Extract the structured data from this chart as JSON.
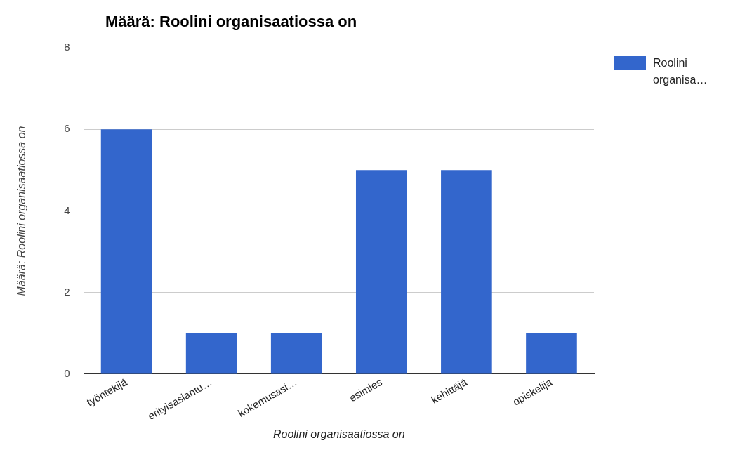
{
  "chart_data": {
    "type": "bar",
    "title": "Määrä: Roolini organisaatiossa on",
    "xlabel": "Roolini organisaatiossa on",
    "ylabel": "Määrä: Roolini organisaatiossa on",
    "categories": [
      "työntekijä",
      "erityisasiantu…",
      "kokemusasi…",
      "esimies",
      "kehittäjä",
      "opiskelija"
    ],
    "series": [
      {
        "name": "Roolini organisa…",
        "color": "#3366cc",
        "values": [
          6,
          1,
          1,
          5,
          5,
          1
        ]
      }
    ],
    "ylim": [
      0,
      8
    ],
    "yticks": [
      0,
      2,
      4,
      6,
      8
    ],
    "grid": "y",
    "legend": "right"
  }
}
